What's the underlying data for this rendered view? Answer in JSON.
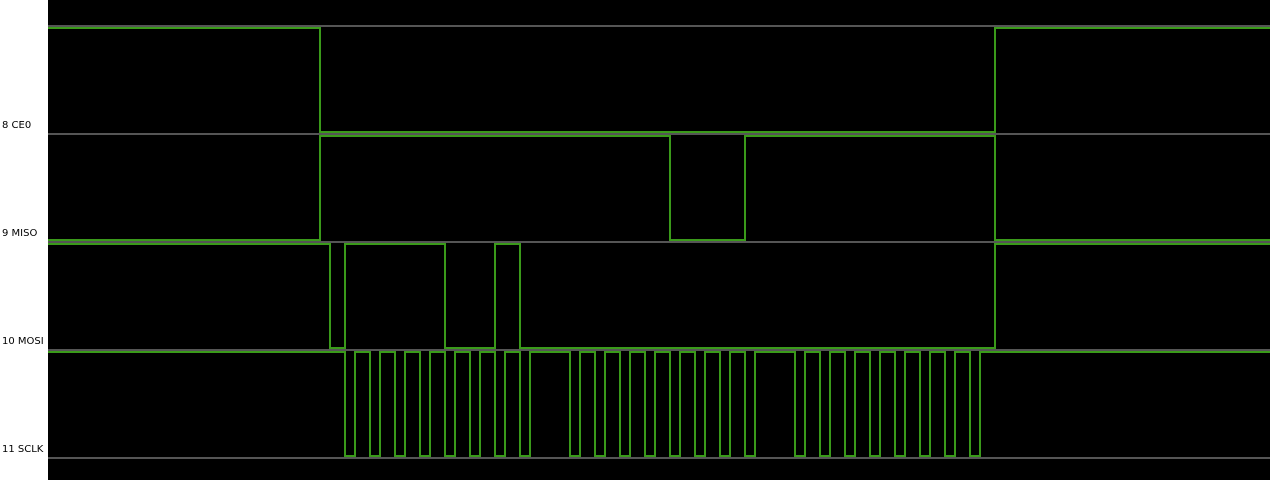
{
  "background_color": "#000000",
  "grid_color": "#555555",
  "trace_color": "#3a9a1a",
  "time_window": [
    0.6,
    245
  ],
  "channels": [
    {
      "label": "8 CE0",
      "initial": 1,
      "edges": [
        55,
        190
      ]
    },
    {
      "label": "9 MISO",
      "initial": 0,
      "edges": [
        55,
        125,
        140,
        190
      ]
    },
    {
      "label": "10 MOSI",
      "initial": 1,
      "edges": [
        57,
        60,
        80,
        90,
        95,
        190
      ]
    },
    {
      "label": "11 SCLK",
      "initial": 1,
      "edges": [
        60,
        62,
        65,
        67,
        70,
        72,
        75,
        77,
        80,
        82,
        85,
        87,
        90,
        92,
        95,
        97,
        105,
        107,
        110,
        112,
        115,
        117,
        120,
        122,
        125,
        127,
        130,
        132,
        135,
        137,
        140,
        142,
        150,
        152,
        155,
        157,
        160,
        162,
        165,
        167,
        170,
        172,
        175,
        177,
        180,
        182,
        185,
        187
      ]
    }
  ]
}
